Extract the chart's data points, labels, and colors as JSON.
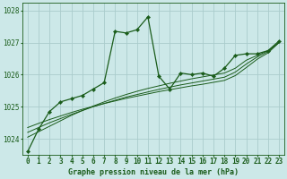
{
  "title": "Graphe pression niveau de la mer (hPa)",
  "background_color": "#cce8e8",
  "grid_color": "#aacccc",
  "line_color": "#1a5c1a",
  "marker_color": "#1a5c1a",
  "label_color": "#1a5c1a",
  "main_series": [
    1023.6,
    1024.3,
    1024.85,
    1025.15,
    1025.25,
    1025.35,
    1025.55,
    1025.75,
    1027.35,
    1027.3,
    1027.4,
    1027.8,
    1025.95,
    1025.55,
    1026.05,
    1026.0,
    1026.05,
    1025.95,
    1026.2,
    1026.6,
    1026.65,
    1026.65,
    1026.75,
    1027.05
  ],
  "smooth1": [
    1024.05,
    1024.22,
    1024.39,
    1024.56,
    1024.73,
    1024.88,
    1025.02,
    1025.15,
    1025.27,
    1025.38,
    1025.48,
    1025.57,
    1025.65,
    1025.73,
    1025.8,
    1025.87,
    1025.93,
    1025.99,
    1026.05,
    1026.2,
    1026.45,
    1026.6,
    1026.75,
    1027.0
  ],
  "smooth2": [
    1024.2,
    1024.35,
    1024.5,
    1024.63,
    1024.76,
    1024.88,
    1025.0,
    1025.1,
    1025.2,
    1025.3,
    1025.38,
    1025.46,
    1025.54,
    1025.61,
    1025.68,
    1025.74,
    1025.8,
    1025.86,
    1025.92,
    1026.08,
    1026.33,
    1026.55,
    1026.72,
    1027.0
  ],
  "smooth3": [
    1024.35,
    1024.48,
    1024.6,
    1024.71,
    1024.82,
    1024.92,
    1025.01,
    1025.1,
    1025.18,
    1025.26,
    1025.33,
    1025.4,
    1025.47,
    1025.53,
    1025.59,
    1025.65,
    1025.7,
    1025.76,
    1025.82,
    1025.97,
    1026.22,
    1026.48,
    1026.68,
    1027.0
  ],
  "ylim": [
    1023.5,
    1028.25
  ],
  "yticks": [
    1024,
    1025,
    1026,
    1027,
    1028
  ],
  "xticks": [
    0,
    1,
    2,
    3,
    4,
    5,
    6,
    7,
    8,
    9,
    10,
    11,
    12,
    13,
    14,
    15,
    16,
    17,
    18,
    19,
    20,
    21,
    22,
    23
  ],
  "tick_fontsize": 5.5,
  "label_fontsize": 6.0
}
